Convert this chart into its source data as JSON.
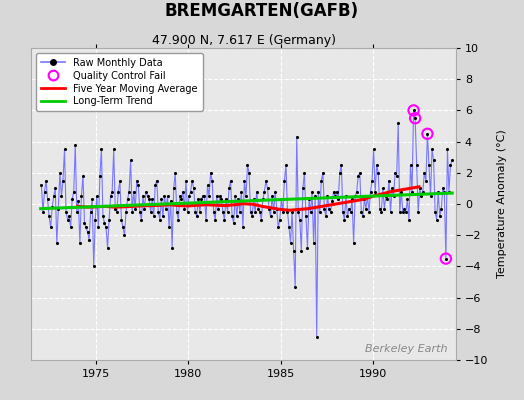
{
  "title": "BREMGARTEN(GAFB)",
  "subtitle": "47.900 N, 7.617 E (Germany)",
  "ylabel": "Temperature Anomaly (°C)",
  "watermark": "Berkeley Earth",
  "xlim": [
    1971.5,
    1994.5
  ],
  "ylim": [
    -10,
    10
  ],
  "yticks": [
    -10,
    -8,
    -6,
    -4,
    -2,
    0,
    2,
    4,
    6,
    8,
    10
  ],
  "xticks": [
    1975,
    1980,
    1985,
    1990
  ],
  "fig_bg_color": "#d8d8d8",
  "plot_bg_color": "#e8e8e8",
  "grid_color": "white",
  "raw_line_color": "#7777ff",
  "raw_dot_color": "black",
  "moving_avg_color": "red",
  "trend_color": "#00cc00",
  "qc_fail_color": "magenta",
  "raw_data_years": [
    1972.042,
    1972.125,
    1972.208,
    1972.292,
    1972.375,
    1972.458,
    1972.542,
    1972.625,
    1972.708,
    1972.792,
    1972.875,
    1972.958,
    1973.042,
    1973.125,
    1973.208,
    1973.292,
    1973.375,
    1973.458,
    1973.542,
    1973.625,
    1973.708,
    1973.792,
    1973.875,
    1973.958,
    1974.042,
    1974.125,
    1974.208,
    1974.292,
    1974.375,
    1974.458,
    1974.542,
    1974.625,
    1974.708,
    1974.792,
    1974.875,
    1974.958,
    1975.042,
    1975.125,
    1975.208,
    1975.292,
    1975.375,
    1975.458,
    1975.542,
    1975.625,
    1975.708,
    1975.792,
    1975.875,
    1975.958,
    1976.042,
    1976.125,
    1976.208,
    1976.292,
    1976.375,
    1976.458,
    1976.542,
    1976.625,
    1976.708,
    1976.792,
    1976.875,
    1976.958,
    1977.042,
    1977.125,
    1977.208,
    1977.292,
    1977.375,
    1977.458,
    1977.542,
    1977.625,
    1977.708,
    1977.792,
    1977.875,
    1977.958,
    1978.042,
    1978.125,
    1978.208,
    1978.292,
    1978.375,
    1978.458,
    1978.542,
    1978.625,
    1978.708,
    1978.792,
    1978.875,
    1978.958,
    1979.042,
    1979.125,
    1979.208,
    1979.292,
    1979.375,
    1979.458,
    1979.542,
    1979.625,
    1979.708,
    1979.792,
    1979.875,
    1979.958,
    1980.042,
    1980.125,
    1980.208,
    1980.292,
    1980.375,
    1980.458,
    1980.542,
    1980.625,
    1980.708,
    1980.792,
    1980.875,
    1980.958,
    1981.042,
    1981.125,
    1981.208,
    1981.292,
    1981.375,
    1981.458,
    1981.542,
    1981.625,
    1981.708,
    1981.792,
    1981.875,
    1981.958,
    1982.042,
    1982.125,
    1982.208,
    1982.292,
    1982.375,
    1982.458,
    1982.542,
    1982.625,
    1982.708,
    1982.792,
    1982.875,
    1982.958,
    1983.042,
    1983.125,
    1983.208,
    1983.292,
    1983.375,
    1983.458,
    1983.542,
    1983.625,
    1983.708,
    1983.792,
    1983.875,
    1983.958,
    1984.042,
    1984.125,
    1984.208,
    1984.292,
    1984.375,
    1984.458,
    1984.542,
    1984.625,
    1984.708,
    1984.792,
    1984.875,
    1984.958,
    1985.042,
    1985.125,
    1985.208,
    1985.292,
    1985.375,
    1985.458,
    1985.542,
    1985.625,
    1985.708,
    1985.792,
    1985.875,
    1985.958,
    1986.042,
    1986.125,
    1986.208,
    1986.292,
    1986.375,
    1986.458,
    1986.542,
    1986.625,
    1986.708,
    1986.792,
    1986.875,
    1986.958,
    1987.042,
    1987.125,
    1987.208,
    1987.292,
    1987.375,
    1987.458,
    1987.542,
    1987.625,
    1987.708,
    1987.792,
    1987.875,
    1987.958,
    1988.042,
    1988.125,
    1988.208,
    1988.292,
    1988.375,
    1988.458,
    1988.542,
    1988.625,
    1988.708,
    1988.792,
    1988.875,
    1988.958,
    1989.042,
    1989.125,
    1989.208,
    1989.292,
    1989.375,
    1989.458,
    1989.542,
    1989.625,
    1989.708,
    1989.792,
    1989.875,
    1989.958,
    1990.042,
    1990.125,
    1990.208,
    1990.292,
    1990.375,
    1990.458,
    1990.542,
    1990.625,
    1990.708,
    1990.792,
    1990.875,
    1990.958,
    1991.042,
    1991.125,
    1991.208,
    1991.292,
    1991.375,
    1991.458,
    1991.542,
    1991.625,
    1991.708,
    1991.792,
    1991.875,
    1991.958,
    1992.042,
    1992.125,
    1992.208,
    1992.292,
    1992.375,
    1992.458,
    1992.542,
    1992.625,
    1992.708,
    1992.792,
    1992.875,
    1992.958,
    1993.042,
    1993.125,
    1993.208,
    1993.292,
    1993.375,
    1993.458,
    1993.542,
    1993.625,
    1993.708,
    1993.792,
    1993.875,
    1993.958,
    1994.042,
    1994.125,
    1994.208,
    1994.292
  ],
  "raw_data_values": [
    1.2,
    -0.5,
    0.8,
    1.5,
    0.3,
    -0.8,
    -1.5,
    -0.2,
    0.5,
    1.0,
    -2.5,
    -0.3,
    2.0,
    0.5,
    1.5,
    3.5,
    -0.5,
    -1.0,
    -0.8,
    -1.5,
    0.3,
    0.8,
    3.8,
    -0.5,
    0.2,
    -2.5,
    0.5,
    1.8,
    -1.2,
    -1.5,
    -1.8,
    -2.3,
    -0.5,
    0.3,
    -4.0,
    -1.0,
    0.5,
    -1.5,
    1.8,
    3.5,
    -0.8,
    -1.2,
    -1.5,
    -2.8,
    -1.0,
    0.5,
    0.8,
    3.5,
    -0.3,
    -0.5,
    0.8,
    1.5,
    -1.0,
    -1.5,
    -2.0,
    -0.5,
    0.3,
    0.8,
    2.8,
    -0.5,
    0.8,
    -0.3,
    1.5,
    1.2,
    -0.5,
    -1.0,
    0.5,
    -0.3,
    0.8,
    0.5,
    0.3,
    -0.5,
    0.3,
    -0.8,
    1.2,
    1.5,
    -0.5,
    -1.0,
    0.3,
    -0.8,
    0.5,
    -0.3,
    0.5,
    -1.5,
    0.2,
    -2.8,
    1.0,
    2.0,
    -0.5,
    -1.0,
    0.5,
    0.3,
    0.8,
    -0.3,
    1.5,
    -0.5,
    0.5,
    0.8,
    1.5,
    1.0,
    -0.5,
    -0.8,
    0.3,
    -0.5,
    0.3,
    0.5,
    0.5,
    -1.0,
    1.2,
    0.5,
    2.0,
    1.5,
    -0.5,
    -1.0,
    0.5,
    -0.3,
    0.5,
    0.3,
    -0.5,
    -1.0,
    0.3,
    -0.5,
    1.0,
    1.5,
    -0.8,
    -1.2,
    0.5,
    -0.8,
    0.3,
    -0.5,
    0.8,
    -1.5,
    1.5,
    0.5,
    2.5,
    2.0,
    -0.5,
    -0.8,
    0.3,
    -0.5,
    0.8,
    -0.3,
    -0.5,
    -1.0,
    0.3,
    0.8,
    1.5,
    1.0,
    -0.3,
    -0.8,
    0.5,
    -0.5,
    0.8,
    -0.3,
    -1.5,
    -1.0,
    0.3,
    -0.5,
    1.5,
    2.5,
    -0.5,
    -1.5,
    -2.5,
    -0.5,
    -3.0,
    -5.3,
    4.3,
    -0.5,
    -1.0,
    -3.0,
    1.0,
    2.0,
    -0.8,
    -2.8,
    0.3,
    -0.5,
    0.8,
    -2.5,
    0.5,
    -8.5,
    0.8,
    -0.5,
    1.5,
    2.0,
    -0.3,
    -0.8,
    0.5,
    -0.3,
    -0.5,
    0.2,
    0.8,
    0.5,
    0.8,
    0.3,
    2.0,
    2.5,
    -0.5,
    -1.0,
    0.5,
    -0.8,
    -0.3,
    -0.5,
    0.3,
    -2.5,
    0.5,
    0.8,
    1.8,
    2.0,
    -0.5,
    -0.8,
    0.3,
    -0.3,
    0.5,
    -0.5,
    0.8,
    1.5,
    3.5,
    0.8,
    2.5,
    2.0,
    -0.3,
    -0.5,
    1.0,
    -0.3,
    0.5,
    0.3,
    1.5,
    -0.5,
    1.0,
    0.5,
    2.0,
    1.8,
    5.2,
    -0.5,
    0.8,
    -0.5,
    -0.3,
    -0.5,
    0.3,
    -1.0,
    2.5,
    0.8,
    6.0,
    5.5,
    2.5,
    -0.5,
    1.0,
    0.5,
    0.8,
    2.0,
    1.5,
    4.5,
    2.5,
    0.5,
    3.5,
    2.8,
    -0.5,
    -1.0,
    0.8,
    -0.8,
    -0.3,
    1.0,
    0.8,
    -3.5,
    3.5,
    0.8,
    2.5,
    2.8
  ],
  "qc_fail_years": [
    1992.208,
    1992.292,
    1992.958,
    1993.958
  ],
  "qc_fail_values": [
    6.0,
    5.5,
    4.5,
    -3.5
  ],
  "moving_avg_years": [
    1974.0,
    1974.5,
    1975.0,
    1975.5,
    1976.0,
    1976.5,
    1977.0,
    1977.5,
    1978.0,
    1978.5,
    1979.0,
    1979.5,
    1980.0,
    1980.5,
    1981.0,
    1981.5,
    1982.0,
    1982.5,
    1983.0,
    1983.5,
    1984.0,
    1984.5,
    1985.0,
    1985.5,
    1986.0,
    1986.5,
    1987.0,
    1987.5,
    1988.0,
    1988.5,
    1989.0,
    1989.5,
    1990.0,
    1990.5,
    1991.0,
    1991.5,
    1992.0,
    1992.5
  ],
  "moving_avg_values": [
    -0.15,
    -0.2,
    -0.18,
    -0.15,
    -0.2,
    -0.18,
    -0.15,
    -0.12,
    -0.1,
    -0.08,
    -0.05,
    -0.1,
    -0.12,
    -0.08,
    -0.05,
    -0.08,
    -0.1,
    -0.05,
    0.02,
    -0.02,
    -0.15,
    -0.25,
    -0.35,
    -0.4,
    -0.35,
    -0.3,
    -0.2,
    -0.1,
    0.0,
    0.1,
    0.2,
    0.3,
    0.5,
    0.65,
    0.8,
    0.9,
    1.0,
    1.1
  ],
  "trend_years": [
    1972.0,
    1994.3
  ],
  "trend_values": [
    -0.3,
    0.7
  ]
}
